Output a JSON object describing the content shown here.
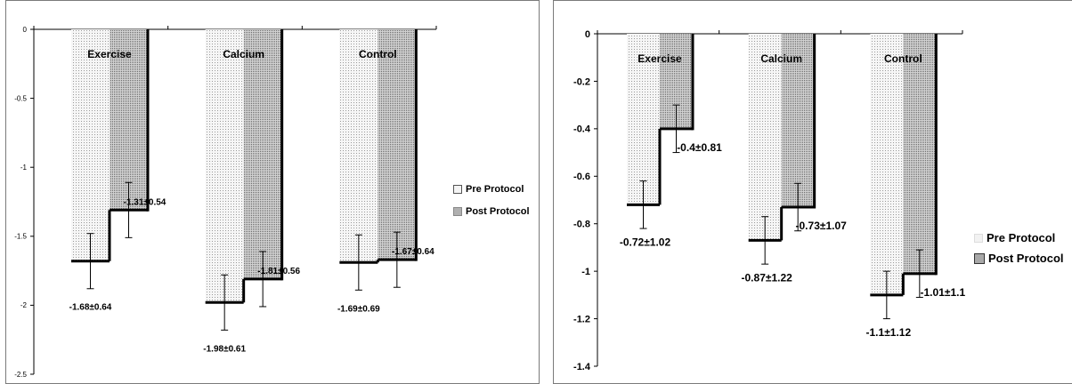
{
  "chart_data": [
    {
      "type": "bar",
      "categories": [
        "Exercise",
        "Calcium",
        "Control"
      ],
      "series": [
        {
          "name": "Pre Protocol",
          "values": [
            -1.68,
            -1.98,
            -1.69
          ],
          "errors": [
            0.2,
            0.2,
            0.2
          ]
        },
        {
          "name": "Post Protocol",
          "values": [
            -1.31,
            -1.81,
            -1.67
          ],
          "errors": [
            0.2,
            0.2,
            0.2
          ]
        }
      ],
      "data_labels": [
        [
          "-1.68±0.64",
          "-1.98±0.61",
          "-1.69±0.69"
        ],
        [
          "-1.31±0.54",
          "-1.81±0.56",
          "-1.67±0.64"
        ]
      ],
      "yticks": [
        "0",
        "-0.5",
        "-1",
        "-1.5",
        "-2",
        "-2.5"
      ],
      "ylim": [
        -2.5,
        0
      ],
      "legend_position": "right",
      "grid": false
    },
    {
      "type": "bar",
      "categories": [
        "Exercise",
        "Calcium",
        "Control"
      ],
      "series": [
        {
          "name": "Pre Protocol",
          "values": [
            -0.72,
            -0.87,
            -1.1
          ],
          "errors": [
            0.1,
            0.1,
            0.1
          ]
        },
        {
          "name": "Post Protocol",
          "values": [
            -0.4,
            -0.73,
            -1.01
          ],
          "errors": [
            0.1,
            0.1,
            0.1
          ]
        }
      ],
      "data_labels": [
        [
          "-0.72±1.02",
          "-0.87±1.22",
          "-1.1±1.12"
        ],
        [
          "-0.4±0.81",
          "-0.73±1.07",
          "-1.01±1.1"
        ]
      ],
      "yticks": [
        "0",
        "-0.2",
        "-0.4",
        "-0.6",
        "-0.8",
        "-1",
        "-1.2",
        "-1.4"
      ],
      "ylim": [
        -1.4,
        0
      ],
      "legend_position": "right",
      "grid": false
    }
  ]
}
